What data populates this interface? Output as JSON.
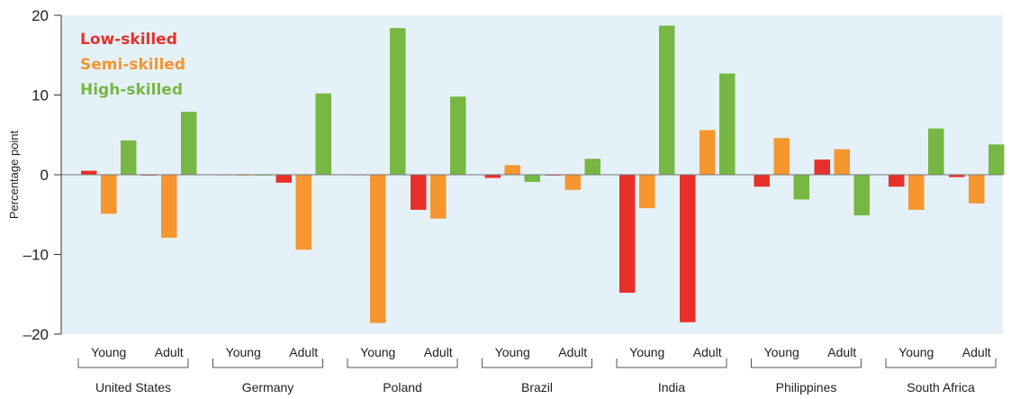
{
  "chart_data": {
    "type": "bar",
    "ylabel": "Percentage point",
    "ylim": [
      -20,
      20
    ],
    "yticks": [
      {
        "value": 20,
        "label": "20"
      },
      {
        "value": 10,
        "label": "10"
      },
      {
        "value": 0,
        "label": "0"
      },
      {
        "value": -10,
        "label": "–10"
      },
      {
        "value": -20,
        "label": "–20"
      }
    ],
    "grid": false,
    "legend_position": "top-left",
    "series": [
      {
        "name": "Low-skilled",
        "color": "#e8302a"
      },
      {
        "name": "Semi-skilled",
        "color": "#f5962f"
      },
      {
        "name": "High-skilled",
        "color": "#76b843"
      }
    ],
    "countries": [
      {
        "name": "United States",
        "groups": [
          {
            "label": "Young",
            "values": [
              0.5,
              -4.9,
              4.3
            ]
          },
          {
            "label": "Adult",
            "values": [
              -0.1,
              -7.9,
              7.9
            ]
          }
        ]
      },
      {
        "name": "Germany",
        "groups": [
          {
            "label": "Young",
            "values": [
              0,
              -0.1,
              -0.1
            ]
          },
          {
            "label": "Adult",
            "values": [
              -1.0,
              -9.4,
              10.2
            ]
          }
        ]
      },
      {
        "name": "Poland",
        "groups": [
          {
            "label": "Young",
            "values": [
              0,
              -18.6,
              18.4
            ]
          },
          {
            "label": "Adult",
            "values": [
              -4.4,
              -5.5,
              9.8
            ]
          }
        ]
      },
      {
        "name": "Brazil",
        "groups": [
          {
            "label": "Young",
            "values": [
              -0.4,
              1.2,
              -0.9
            ]
          },
          {
            "label": "Adult",
            "values": [
              -0.1,
              -1.9,
              2.0
            ]
          }
        ]
      },
      {
        "name": "India",
        "groups": [
          {
            "label": "Young",
            "values": [
              -14.8,
              -4.2,
              18.7
            ]
          },
          {
            "label": "Adult",
            "values": [
              -18.5,
              5.6,
              12.7
            ]
          }
        ]
      },
      {
        "name": "Philippines",
        "groups": [
          {
            "label": "Young",
            "values": [
              -1.5,
              4.6,
              -3.1
            ]
          },
          {
            "label": "Adult",
            "values": [
              1.9,
              3.2,
              -5.1
            ]
          }
        ]
      },
      {
        "name": "South Africa",
        "groups": [
          {
            "label": "Young",
            "values": [
              -1.5,
              -4.4,
              5.8
            ]
          },
          {
            "label": "Adult",
            "values": [
              -0.3,
              -3.6,
              3.8
            ]
          }
        ]
      }
    ]
  }
}
